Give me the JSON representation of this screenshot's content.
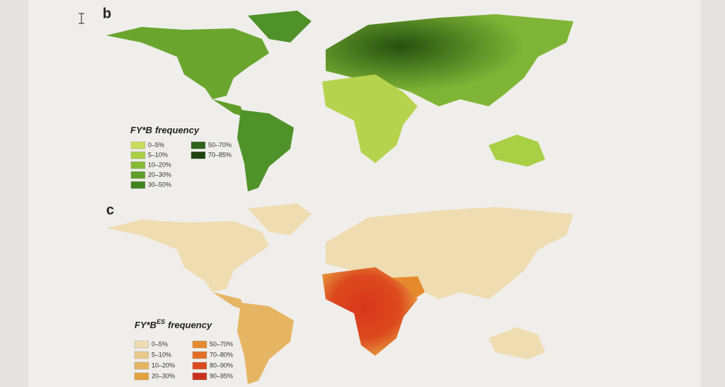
{
  "panels": [
    {
      "letter": "b",
      "legend": {
        "title": "FY*B",
        "title_rest": "frequency",
        "items": [
          {
            "label": "0–5%",
            "color": "#c9dd5c"
          },
          {
            "label": "5–10%",
            "color": "#a9cf45"
          },
          {
            "label": "10–20%",
            "color": "#86bb37"
          },
          {
            "label": "20–30%",
            "color": "#5f9e2a"
          },
          {
            "label": "30–50%",
            "color": "#3f8420"
          },
          {
            "label": "50–70%",
            "color": "#2c6418"
          },
          {
            "label": "70–85%",
            "color": "#1d4410"
          }
        ]
      }
    },
    {
      "letter": "c",
      "legend": {
        "title": "FY*B",
        "title_sup": "ES",
        "title_rest": "frequency",
        "items": [
          {
            "label": "0–5%",
            "color": "#efdcb0"
          },
          {
            "label": "5–10%",
            "color": "#e9c98a"
          },
          {
            "label": "10–20%",
            "color": "#e6b563"
          },
          {
            "label": "20–30%",
            "color": "#e3a23e"
          },
          {
            "label": "50–70%",
            "color": "#e58a2c"
          },
          {
            "label": "70–80%",
            "color": "#e26f25"
          },
          {
            "label": "80–90%",
            "color": "#dc4a1f"
          },
          {
            "label": "90–95%",
            "color": "#c9301a"
          }
        ]
      }
    }
  ]
}
